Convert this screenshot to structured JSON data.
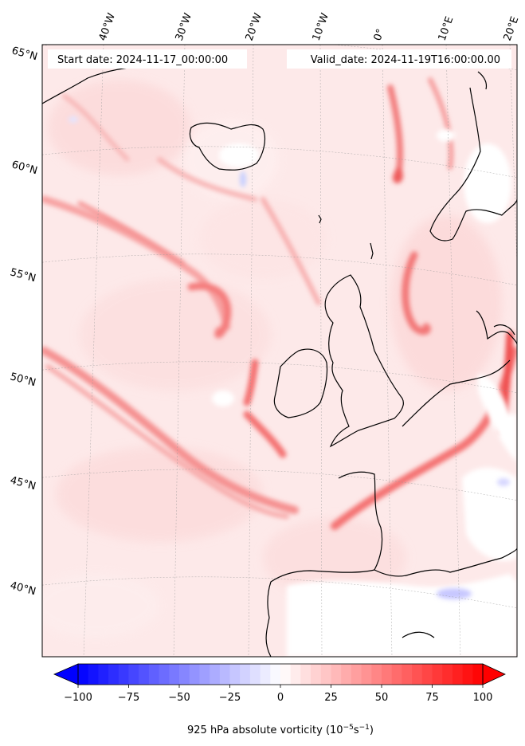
{
  "header": {
    "start_date": "Start date: 2024-11-17_00:00:00",
    "valid_date": "Valid_date: 2024-11-19T16:00:00.00"
  },
  "longitude_labels": [
    "40°W",
    "30°W",
    "20°W",
    "10°W",
    "0°",
    "10°E",
    "20°E"
  ],
  "latitude_labels": [
    "65°N",
    "60°N",
    "55°N",
    "50°N",
    "45°N",
    "40°N"
  ],
  "colorbar": {
    "label": "925 hPa absolute vorticity (10",
    "label_exp1": "−5",
    "label_mid": "s",
    "label_exp2": "−1",
    "label_end": ")",
    "ticks": [
      "−100",
      "−75",
      "−50",
      "−25",
      "0",
      "25",
      "50",
      "75",
      "100"
    ],
    "range": [
      -100,
      100
    ],
    "extend": "both",
    "colormap": "bwr",
    "low_color": "#0000ff",
    "mid_color": "#ffffff",
    "high_color": "#ff0000"
  }
}
